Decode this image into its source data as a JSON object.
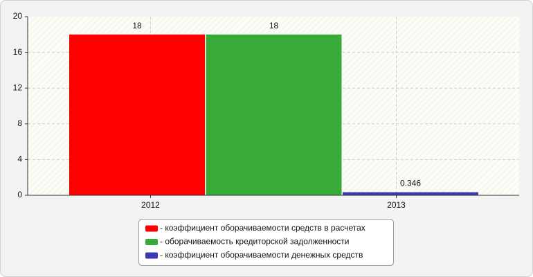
{
  "chart_data": {
    "type": "bar",
    "categories": [
      "2012",
      "2013"
    ],
    "series": [
      {
        "name": "- коэффициент оборачиваемости средств в расчетах",
        "color": "#ff0000",
        "values": [
          18,
          null
        ]
      },
      {
        "name": "- оборачиваемость кредиторской задолженности",
        "color": "#37aa37",
        "values": [
          18,
          null
        ]
      },
      {
        "name": "- коэффициент оборачиваемости денежных средств",
        "color": "#3a3ab0",
        "values": [
          null,
          0.346
        ]
      }
    ],
    "ylim": [
      0,
      20
    ],
    "yticks": [
      0,
      4,
      8,
      12,
      16,
      20
    ],
    "grid": true
  }
}
